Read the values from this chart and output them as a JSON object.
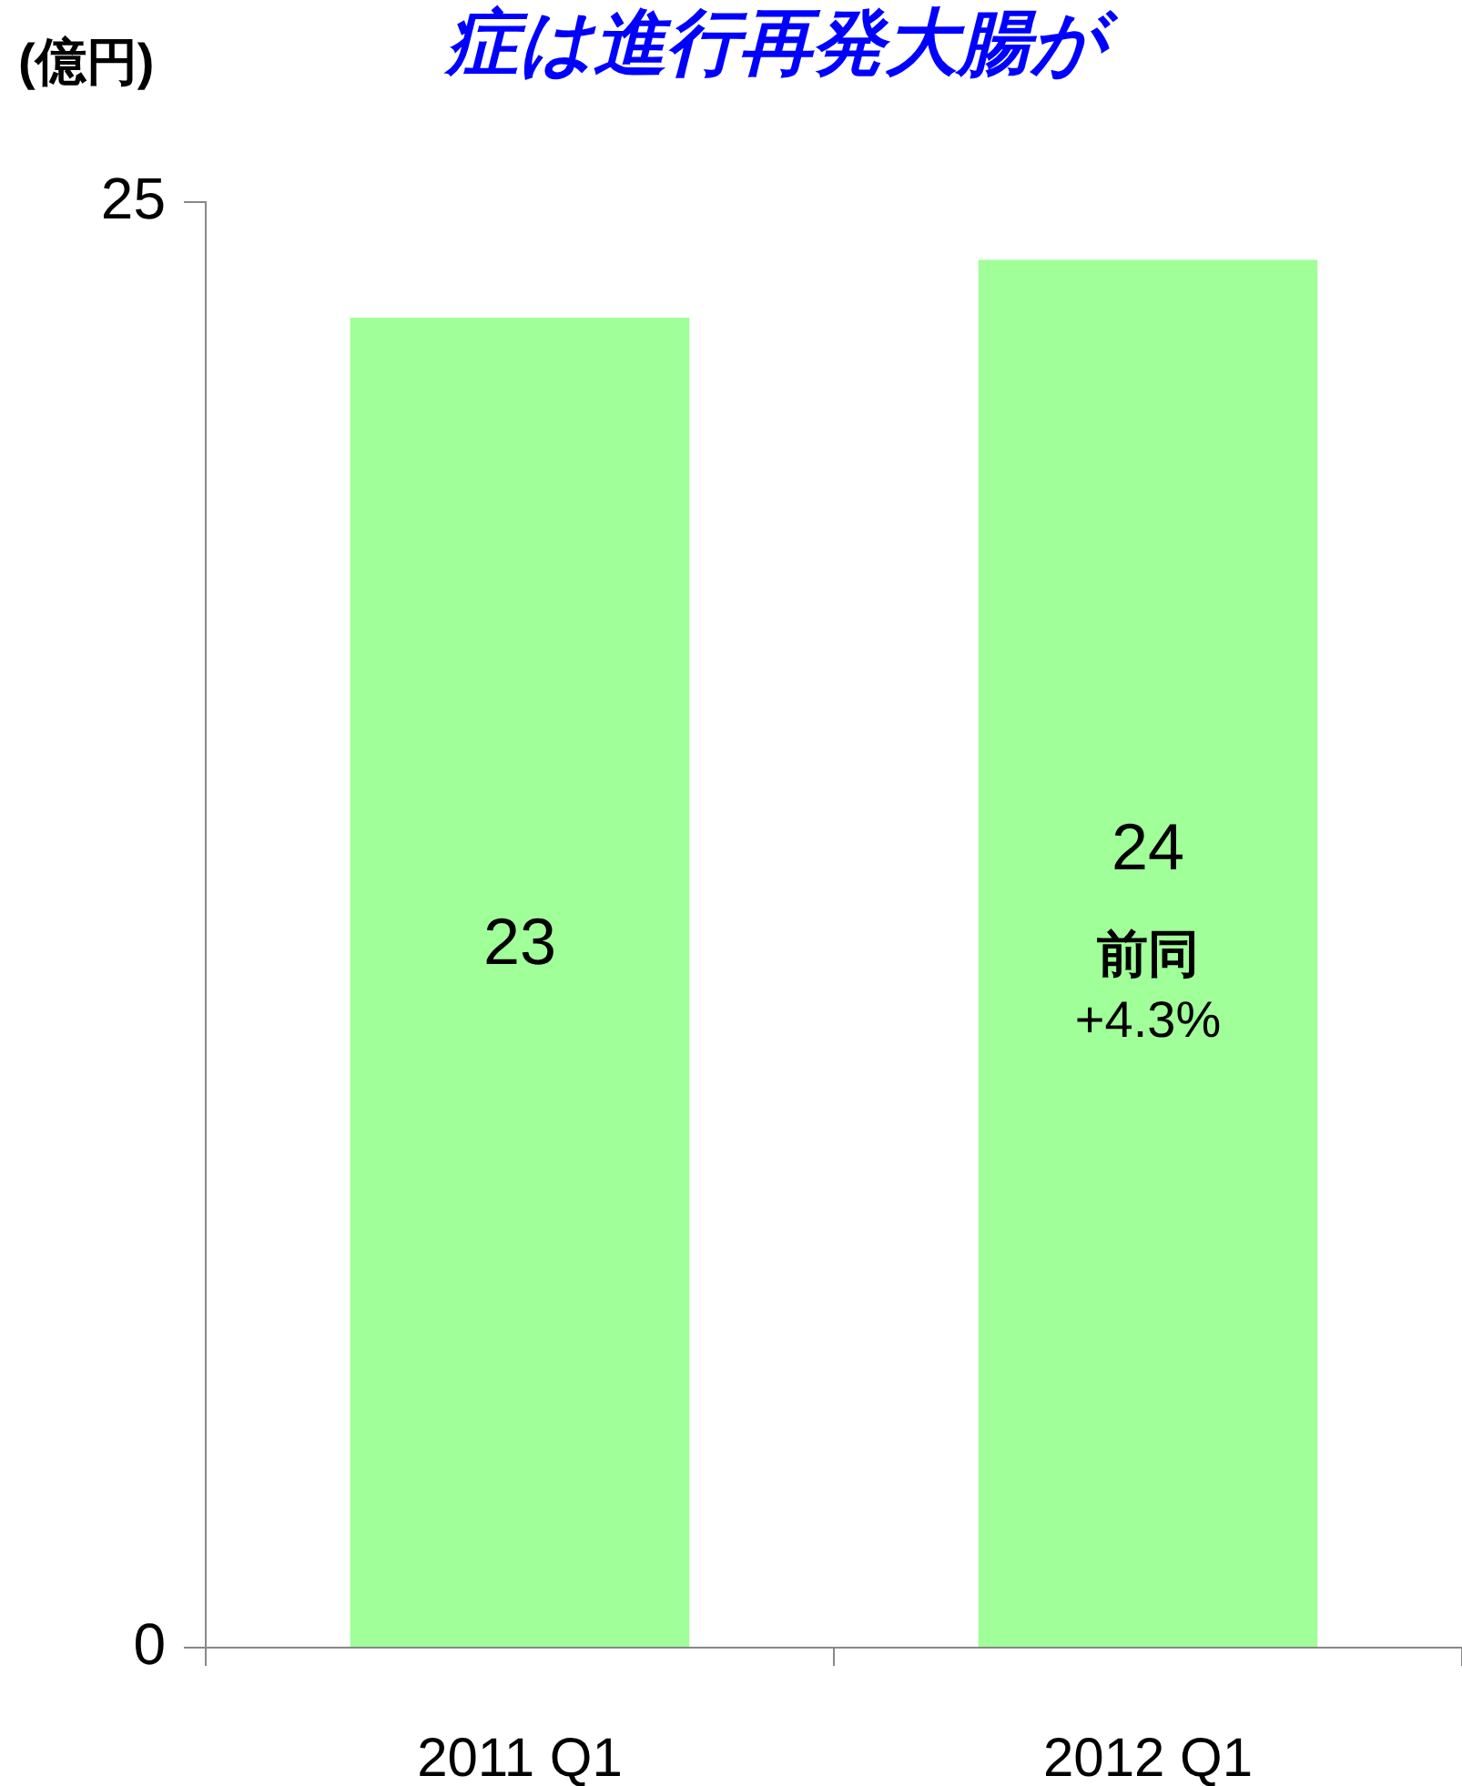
{
  "chart_data": {
    "type": "bar",
    "title": "症は進行再発大腸が",
    "ylabel": "(億円)",
    "categories": [
      "2011 Q1",
      "2012 Q1"
    ],
    "values": [
      23,
      24
    ],
    "color": "#a0ff98",
    "ylim": [
      0,
      25
    ],
    "yticks": [
      0,
      25
    ],
    "grid": false,
    "legend": false,
    "data_labels": true,
    "annotations": [
      "前同",
      "+4.3%"
    ]
  }
}
